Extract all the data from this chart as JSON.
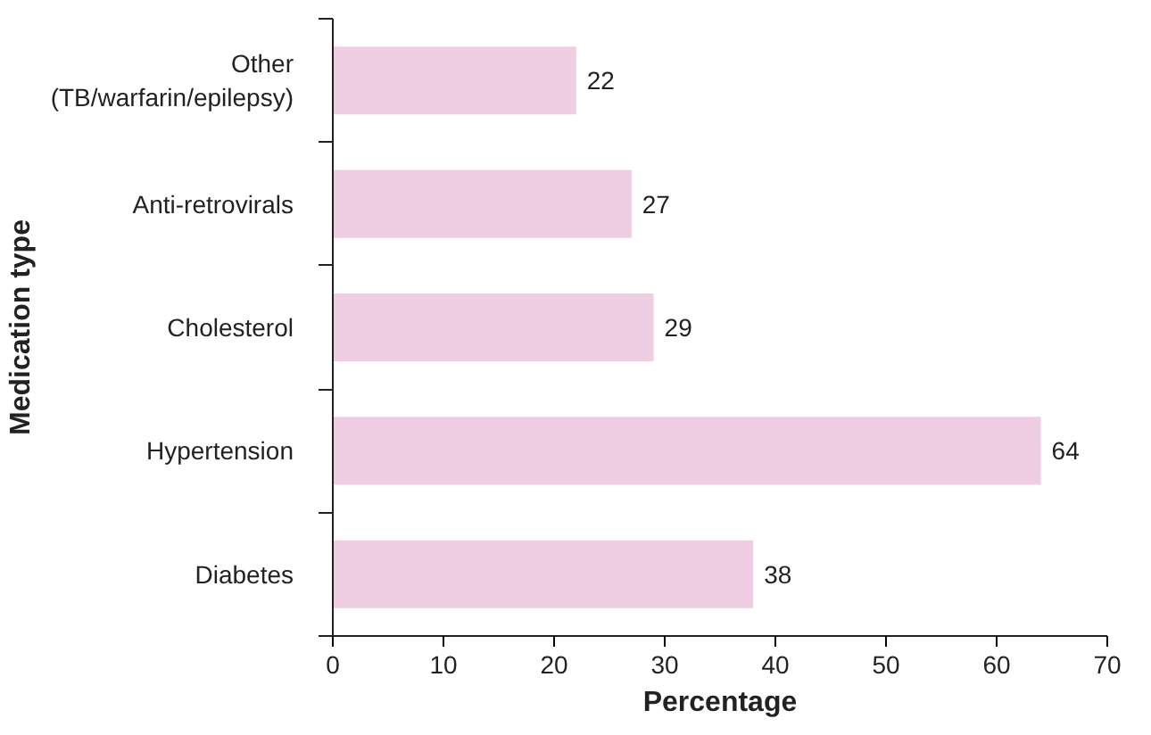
{
  "chart_data": {
    "type": "bar",
    "orientation": "horizontal",
    "xlabel": "Percentage",
    "ylabel": "Medication type",
    "categories": [
      "Other (TB/warfarin/epilepsy)",
      "Anti-retrovirals",
      "Cholesterol",
      "Hypertension",
      "Diabetes"
    ],
    "values": [
      22,
      27,
      29,
      64,
      38
    ],
    "color": "#efcde3",
    "xlim": [
      0,
      70
    ],
    "xticks": [
      0,
      10,
      20,
      30,
      40,
      50,
      60,
      70
    ],
    "grid": false,
    "data_labels": true
  }
}
